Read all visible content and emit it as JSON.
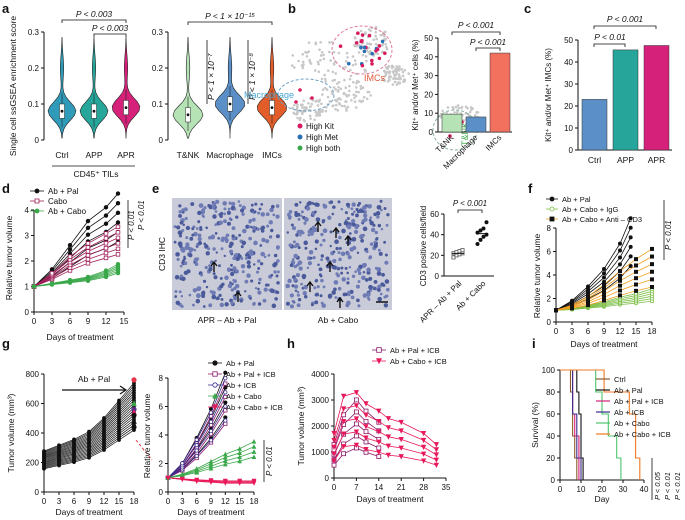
{
  "figure": {
    "panel_labels": [
      "a",
      "b",
      "c",
      "d",
      "e",
      "f",
      "g",
      "h",
      "i"
    ]
  },
  "colors": {
    "blue": "#2f9bb8",
    "teal": "#26a69a",
    "magenta": "#d6217a",
    "green": "#b5e3b5",
    "steel": "#5b8fc7",
    "orange": "#e35d2a",
    "salmon": "#f2715e",
    "gray": "#a8a8a8",
    "black": "#111111",
    "red": "#e8374a",
    "purple": "#8b1a6b",
    "violet": "#3b2c8c",
    "brown": "#8b5a2b",
    "lime": "#4cc46a",
    "cabo_icb": "#e8195a",
    "ivory": "#f5f0e6"
  },
  "chart_data": [
    {
      "panel": "a-left",
      "type": "violin",
      "ylabel": "Single cell ssGSEA enrichment score",
      "xlabel": "CD45⁺ TILs",
      "categories": [
        "Ctrl",
        "APP",
        "APR"
      ],
      "y_ticks": [
        "0",
        "0.1",
        "0.2",
        "0.3"
      ],
      "ylim": [
        0,
        0.3
      ],
      "medians": [
        0.08,
        0.08,
        0.09
      ],
      "annotations": [
        "P < 0.003",
        "P < 0.003"
      ]
    },
    {
      "panel": "a-right",
      "type": "violin",
      "categories": [
        "T&NK",
        "Macrophage",
        "IMCs"
      ],
      "y_ticks": [
        "0",
        "0.1",
        "0.2",
        "0.3"
      ],
      "ylim": [
        0,
        0.3
      ],
      "medians": [
        0.07,
        0.1,
        0.09
      ],
      "annotations": [
        "P < 1 × 10⁻¹⁵",
        "P < 1 × 10⁻⁷",
        "P < 1 × 10⁻⁸"
      ]
    },
    {
      "panel": "b-map",
      "type": "scatter",
      "cluster_labels": [
        "Macrophage",
        "IMCs",
        "T&NK"
      ],
      "legend": [
        "High Kit",
        "High Met",
        "High both"
      ]
    },
    {
      "panel": "b-bar",
      "type": "bar",
      "ylabel": "Kit⁺ and/or Met⁺ cells (%)",
      "categories": [
        "T&NK",
        "Macrophage",
        "IMCs"
      ],
      "values": [
        9.5,
        8,
        42
      ],
      "ylim": [
        0,
        50
      ],
      "y_ticks": [
        "0",
        "10",
        "20",
        "30",
        "40",
        "50"
      ],
      "annotations": [
        "P < 0.001",
        "P < 0.001"
      ]
    },
    {
      "panel": "c",
      "type": "bar",
      "ylabel": "Kit⁺ and/or Met⁺ IMCs (%)",
      "categories": [
        "Ctrl",
        "APP",
        "APR"
      ],
      "values": [
        23,
        45.5,
        47.5
      ],
      "ylim": [
        0,
        50
      ],
      "y_ticks": [
        "0",
        "10",
        "20",
        "30",
        "40",
        "50"
      ],
      "annotations": [
        "P < 0.001",
        "P < 0.01"
      ]
    },
    {
      "panel": "d",
      "type": "line",
      "ylabel": "Relative tumor volume",
      "xlabel": "Days of treatment",
      "x_ticks": [
        "0",
        "3",
        "6",
        "9",
        "12",
        "15"
      ],
      "xlim": [
        0,
        15
      ],
      "y_ticks": [
        "0",
        "1",
        "2",
        "3",
        "4"
      ],
      "ylim": [
        0,
        4
      ],
      "legend": [
        "Ab + Pal",
        "Cabo",
        "Ab + Cabo"
      ],
      "series": [
        {
          "name": "Ab + Pal",
          "x": [
            0,
            3,
            6,
            9,
            12,
            14
          ],
          "mean": [
            1,
            1.5,
            2.2,
            2.9,
            3.3,
            3.7
          ]
        },
        {
          "name": "Cabo",
          "x": [
            0,
            3,
            6,
            9,
            12,
            14
          ],
          "mean": [
            1,
            1.4,
            1.9,
            2.3,
            2.6,
            2.8
          ]
        },
        {
          "name": "Ab + Cabo",
          "x": [
            0,
            3,
            6,
            9,
            12,
            14
          ],
          "mean": [
            1,
            1.1,
            1.2,
            1.3,
            1.5,
            1.7
          ]
        }
      ],
      "annotations": [
        "P < 0.01",
        "P < 0.01"
      ]
    },
    {
      "panel": "e",
      "type": "scatter",
      "image_label": "CD3 IHC",
      "image_captions": [
        "APR – Ab + Pal",
        "Ab + Cabo"
      ],
      "ylabel": "CD3 positive cells/field",
      "categories": [
        "APR – Ab + Pal",
        "Ab + Cabo"
      ],
      "y_ticks": [
        "0",
        "20",
        "40",
        "60"
      ],
      "ylim": [
        0,
        60
      ],
      "values": [
        [
          18,
          20,
          21,
          22,
          22,
          23,
          24,
          25
        ],
        [
          31,
          35,
          38,
          40,
          42,
          44,
          46,
          52
        ]
      ],
      "annotations": [
        "P < 0.001"
      ]
    },
    {
      "panel": "f",
      "type": "line",
      "ylabel": "Relative tumor volume",
      "xlabel": "Days of treatment",
      "x_ticks": [
        "0",
        "3",
        "6",
        "9",
        "12",
        "15",
        "18"
      ],
      "xlim": [
        0,
        18
      ],
      "y_ticks": [
        "0",
        "2",
        "4",
        "6",
        "8"
      ],
      "ylim": [
        0,
        8
      ],
      "legend": [
        "Ab + Pal",
        "Ab + Cabo + IgG",
        "Ab + Cabo + Anti – CD3"
      ],
      "series": [
        {
          "name": "Ab + Pal",
          "x": [
            0,
            3,
            6,
            9,
            12,
            14
          ],
          "mean": [
            1,
            1.6,
            2.5,
            3.6,
            5.2,
            6.8
          ]
        },
        {
          "name": "Ab + Cabo + IgG",
          "x": [
            0,
            3,
            6,
            9,
            12,
            15,
            18
          ],
          "mean": [
            1,
            1.1,
            1.3,
            1.5,
            1.8,
            2.0,
            2.3
          ]
        },
        {
          "name": "Ab + Cabo + Anti – CD3",
          "x": [
            0,
            3,
            6,
            9,
            12,
            15,
            18
          ],
          "mean": [
            1,
            1.3,
            1.8,
            2.5,
            3.3,
            4.0,
            4.6
          ]
        }
      ],
      "annotations": [
        "P < 0.01"
      ]
    },
    {
      "panel": "g-left",
      "type": "line",
      "ylabel": "Tumor volume (mm³)",
      "xlabel": "Days of treatment",
      "x_ticks": [
        "0",
        "3",
        "6",
        "9",
        "12",
        "15",
        "18"
      ],
      "xlim": [
        0,
        18
      ],
      "y_ticks": [
        "0",
        "200",
        "400",
        "600",
        "800"
      ],
      "ylim": [
        0,
        800
      ],
      "arrow_label": "Ab + Pal",
      "series": [
        {
          "name": "Ab + Pal",
          "x": [
            0,
            3,
            6,
            9,
            12,
            15,
            18
          ],
          "mean": [
            210,
            240,
            270,
            310,
            380,
            470,
            560
          ]
        }
      ]
    },
    {
      "panel": "g-right",
      "type": "line",
      "ylabel": "Relative tumor  volume",
      "xlabel": "Days of treatment",
      "x_ticks": [
        "0",
        "3",
        "6",
        "9",
        "12",
        "15",
        "18"
      ],
      "xlim": [
        0,
        18
      ],
      "y_ticks": [
        "0",
        "2",
        "4",
        "6",
        "8"
      ],
      "ylim": [
        0,
        8
      ],
      "legend": [
        "Ab + Pal",
        "Ab + Pal + ICB",
        "Ab + ICB",
        "Ab + Cabo",
        "Ab + Cabo + ICB"
      ],
      "series": [
        {
          "name": "Ab + Pal",
          "x": [
            0,
            3,
            6,
            9,
            12
          ],
          "mean": [
            1,
            1.8,
            3.2,
            4.8,
            6.8
          ]
        },
        {
          "name": "Ab + Pal + ICB",
          "x": [
            0,
            3,
            6,
            9,
            12
          ],
          "mean": [
            1,
            1.7,
            2.9,
            4.4,
            6.2
          ]
        },
        {
          "name": "Ab + ICB",
          "x": [
            0,
            3,
            6,
            9,
            12
          ],
          "mean": [
            1,
            1.8,
            3.1,
            4.6,
            6.5
          ]
        },
        {
          "name": "Ab + Cabo",
          "x": [
            0,
            3,
            6,
            9,
            12,
            15,
            18
          ],
          "mean": [
            1,
            1.2,
            1.5,
            1.9,
            2.3,
            2.6,
            3.0
          ]
        },
        {
          "name": "Ab + Cabo + ICB",
          "x": [
            0,
            3,
            6,
            9,
            12,
            15,
            18
          ],
          "mean": [
            1,
            0.9,
            0.8,
            0.75,
            0.7,
            0.7,
            0.7
          ]
        }
      ],
      "annotations": [
        "P < 0.01"
      ]
    },
    {
      "panel": "h",
      "type": "line",
      "ylabel": "Tumor volume (mm³)",
      "xlabel": "Days of treatment",
      "x_ticks": [
        "0",
        "7",
        "14",
        "21",
        "28",
        "35"
      ],
      "xlim": [
        0,
        35
      ],
      "y_ticks": [
        "0",
        "1000",
        "2000",
        "3000",
        "4000"
      ],
      "ylim": [
        0,
        4000
      ],
      "legend": [
        "Ab + Pal + ICB",
        "Ab + Cabo + ICB"
      ],
      "series": [
        {
          "name": "Ab + Pal + ICB",
          "x": [
            0,
            3,
            7,
            10,
            14
          ],
          "mean": [
            900,
            1700,
            2100,
            1800,
            1500
          ]
        },
        {
          "name": "Ab + Cabo + ICB",
          "x": [
            0,
            3,
            7,
            10,
            14,
            17,
            21,
            28,
            32
          ],
          "mean": [
            1200,
            2200,
            2300,
            2000,
            1800,
            1600,
            1500,
            1200,
            900
          ]
        }
      ]
    },
    {
      "panel": "i",
      "type": "line",
      "ylabel": "Survival (%)",
      "xlabel": "Day",
      "x_ticks": [
        "0",
        "10",
        "20",
        "30",
        "40"
      ],
      "xlim": [
        0,
        40
      ],
      "y_ticks": [
        "0",
        "20",
        "40",
        "60",
        "80",
        "100"
      ],
      "ylim": [
        0,
        100
      ],
      "legend": [
        "Ctrl",
        "Ab + Pal",
        "Ab + Pal + ICB",
        "Ab + ICB",
        "Ab + Cabo",
        "Ab + Cabo + ICB"
      ],
      "series": [
        {
          "name": "Ctrl",
          "x": [
            0,
            4,
            5,
            6,
            7,
            8
          ],
          "y": [
            100,
            100,
            80,
            40,
            20,
            0
          ]
        },
        {
          "name": "Ab + Pal",
          "x": [
            0,
            7,
            8,
            9,
            10,
            11
          ],
          "y": [
            100,
            100,
            80,
            60,
            20,
            0
          ]
        },
        {
          "name": "Ab + Pal + ICB",
          "x": [
            0,
            5,
            6,
            7,
            9
          ],
          "y": [
            100,
            100,
            60,
            40,
            0
          ]
        },
        {
          "name": "Ab + ICB",
          "x": [
            0,
            5,
            6,
            8,
            10
          ],
          "y": [
            100,
            100,
            60,
            20,
            0
          ]
        },
        {
          "name": "Ab + Cabo",
          "x": [
            0,
            14,
            17,
            20,
            23,
            27,
            29
          ],
          "y": [
            100,
            100,
            80,
            60,
            40,
            20,
            0
          ]
        },
        {
          "name": "Ab + Cabo + ICB",
          "x": [
            0,
            19,
            21,
            33,
            36,
            38
          ],
          "y": [
            100,
            100,
            80,
            60,
            20,
            0
          ]
        }
      ],
      "annotations": [
        "P < 0.05",
        "P < 0.01",
        "P < 0.01"
      ]
    }
  ]
}
